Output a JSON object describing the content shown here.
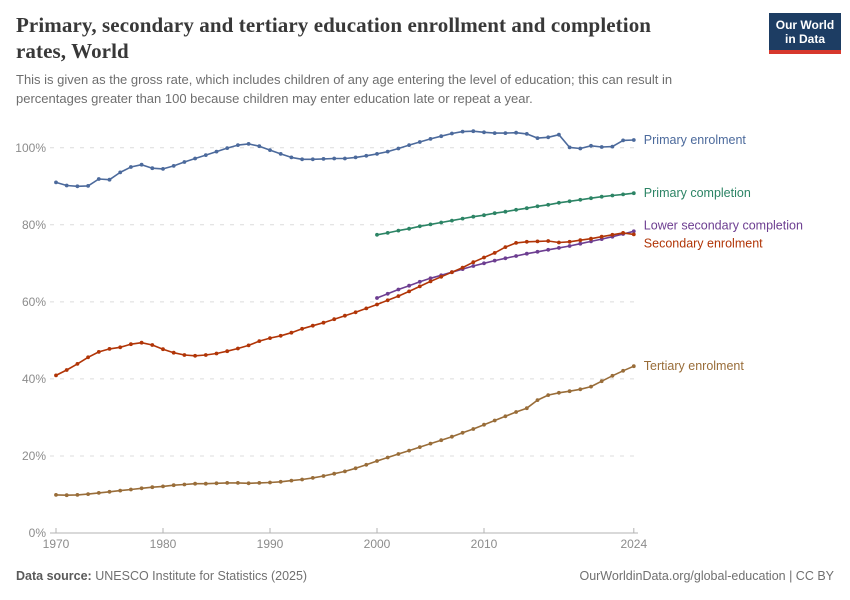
{
  "header": {
    "title_line1": "Primary, secondary and tertiary education enrollment and completion",
    "title_line2": "rates, World",
    "subtitle_line1": "This is given as the gross rate, which includes children of any age entering the level of education; this can result in",
    "subtitle_line2": "percentages greater than 100 because children may enter education late or repeat a year.",
    "logo": {
      "line1": "Our World",
      "line2": "in Data",
      "bg_color": "#1d3d63",
      "stripe_color": "#d7382d"
    }
  },
  "footer": {
    "source_label": "Data source:",
    "source_text": "UNESCO Institute for Statistics (2025)",
    "link_text": "OurWorldinData.org/global-education | CC BY"
  },
  "chart_data": {
    "type": "line",
    "title": "Primary, secondary and tertiary education enrollment and completion rates, World",
    "xlabel": "",
    "ylabel": "",
    "xlim": [
      1969,
      2025
    ],
    "ylim": [
      0,
      108
    ],
    "grid": "horizontal dashed",
    "grid_color": "#dcdcdc",
    "axis_color": "#b3b3b3",
    "tick_label_color": "#8c8c8c",
    "legend_position": "labels at right end of each line",
    "x_ticks": [
      1970,
      1980,
      1990,
      2000,
      2010,
      2024
    ],
    "x_tick_labels": [
      "1970",
      "1980",
      "1990",
      "2000",
      "2010",
      "2024"
    ],
    "y_ticks": [
      0,
      20,
      40,
      60,
      80,
      100
    ],
    "y_tick_labels": [
      "0%",
      "20%",
      "40%",
      "60%",
      "80%",
      "100%"
    ],
    "series": [
      {
        "id": "primary-enrolment",
        "name": "Primary enrolment",
        "color": "#4C6A9C",
        "start_year": 1970,
        "label_offset_y": 0,
        "values": [
          91.0,
          90.2,
          90.0,
          90.1,
          91.9,
          91.7,
          93.6,
          95.0,
          95.6,
          94.7,
          94.5,
          95.3,
          96.3,
          97.2,
          98.1,
          99.0,
          99.9,
          100.7,
          101.0,
          100.4,
          99.4,
          98.4,
          97.5,
          97.0,
          97.0,
          97.1,
          97.2,
          97.2,
          97.5,
          97.9,
          98.4,
          99.0,
          99.8,
          100.7,
          101.5,
          102.3,
          103.0,
          103.7,
          104.2,
          104.3,
          104.0,
          103.8,
          103.8,
          103.9,
          103.6,
          102.5,
          102.7,
          103.4,
          100.1,
          99.8,
          100.5,
          100.2,
          100.3,
          101.9,
          102.0
        ]
      },
      {
        "id": "primary-completion",
        "name": "Primary completion",
        "color": "#2C8465",
        "start_year": 2000,
        "label_offset_y": 0,
        "values": [
          77.4,
          77.9,
          78.5,
          79.0,
          79.6,
          80.1,
          80.6,
          81.1,
          81.6,
          82.1,
          82.5,
          83.0,
          83.4,
          83.9,
          84.3,
          84.8,
          85.2,
          85.7,
          86.1,
          86.5,
          86.9,
          87.3,
          87.6,
          87.9,
          88.2
        ]
      },
      {
        "id": "lower-secondary-completion",
        "name": "Lower secondary completion",
        "color": "#6D3E91",
        "start_year": 2000,
        "label_offset_y": -6,
        "values": [
          61.0,
          62.1,
          63.2,
          64.2,
          65.2,
          66.1,
          66.9,
          67.7,
          68.5,
          69.3,
          70.0,
          70.7,
          71.3,
          71.9,
          72.5,
          73.0,
          73.5,
          74.0,
          74.5,
          75.1,
          75.7,
          76.3,
          76.9,
          77.6,
          78.3
        ]
      },
      {
        "id": "secondary-enrolment",
        "name": "Secondary enrolment",
        "color": "#B13507",
        "start_year": 1970,
        "label_offset_y": 9,
        "values": [
          40.9,
          42.3,
          43.9,
          45.6,
          47.0,
          47.8,
          48.2,
          49.0,
          49.4,
          48.8,
          47.7,
          46.8,
          46.2,
          46.0,
          46.2,
          46.6,
          47.2,
          47.9,
          48.7,
          49.8,
          50.6,
          51.2,
          52.0,
          53.0,
          53.8,
          54.6,
          55.5,
          56.4,
          57.3,
          58.3,
          59.3,
          60.4,
          61.5,
          62.7,
          64.0,
          65.3,
          66.5,
          67.7,
          68.9,
          70.3,
          71.5,
          72.7,
          74.2,
          75.3,
          75.6,
          75.7,
          75.8,
          75.4,
          75.6,
          76.0,
          76.4,
          76.9,
          77.4,
          77.9,
          77.5
        ]
      },
      {
        "id": "tertiary-enrolment",
        "name": "Tertiary enrolment",
        "color": "#996D39",
        "start_year": 1970,
        "label_offset_y": 0,
        "values": [
          9.9,
          9.8,
          9.9,
          10.1,
          10.4,
          10.7,
          11.0,
          11.3,
          11.6,
          11.9,
          12.1,
          12.4,
          12.6,
          12.8,
          12.8,
          12.9,
          13.0,
          13.0,
          12.9,
          13.0,
          13.1,
          13.3,
          13.6,
          13.9,
          14.3,
          14.8,
          15.4,
          16.0,
          16.8,
          17.7,
          18.7,
          19.6,
          20.5,
          21.4,
          22.3,
          23.2,
          24.1,
          25.0,
          26.0,
          27.0,
          28.1,
          29.2,
          30.3,
          31.4,
          32.4,
          34.5,
          35.8,
          36.4,
          36.8,
          37.3,
          38.0,
          39.4,
          40.8,
          42.1,
          43.3
        ]
      }
    ]
  }
}
